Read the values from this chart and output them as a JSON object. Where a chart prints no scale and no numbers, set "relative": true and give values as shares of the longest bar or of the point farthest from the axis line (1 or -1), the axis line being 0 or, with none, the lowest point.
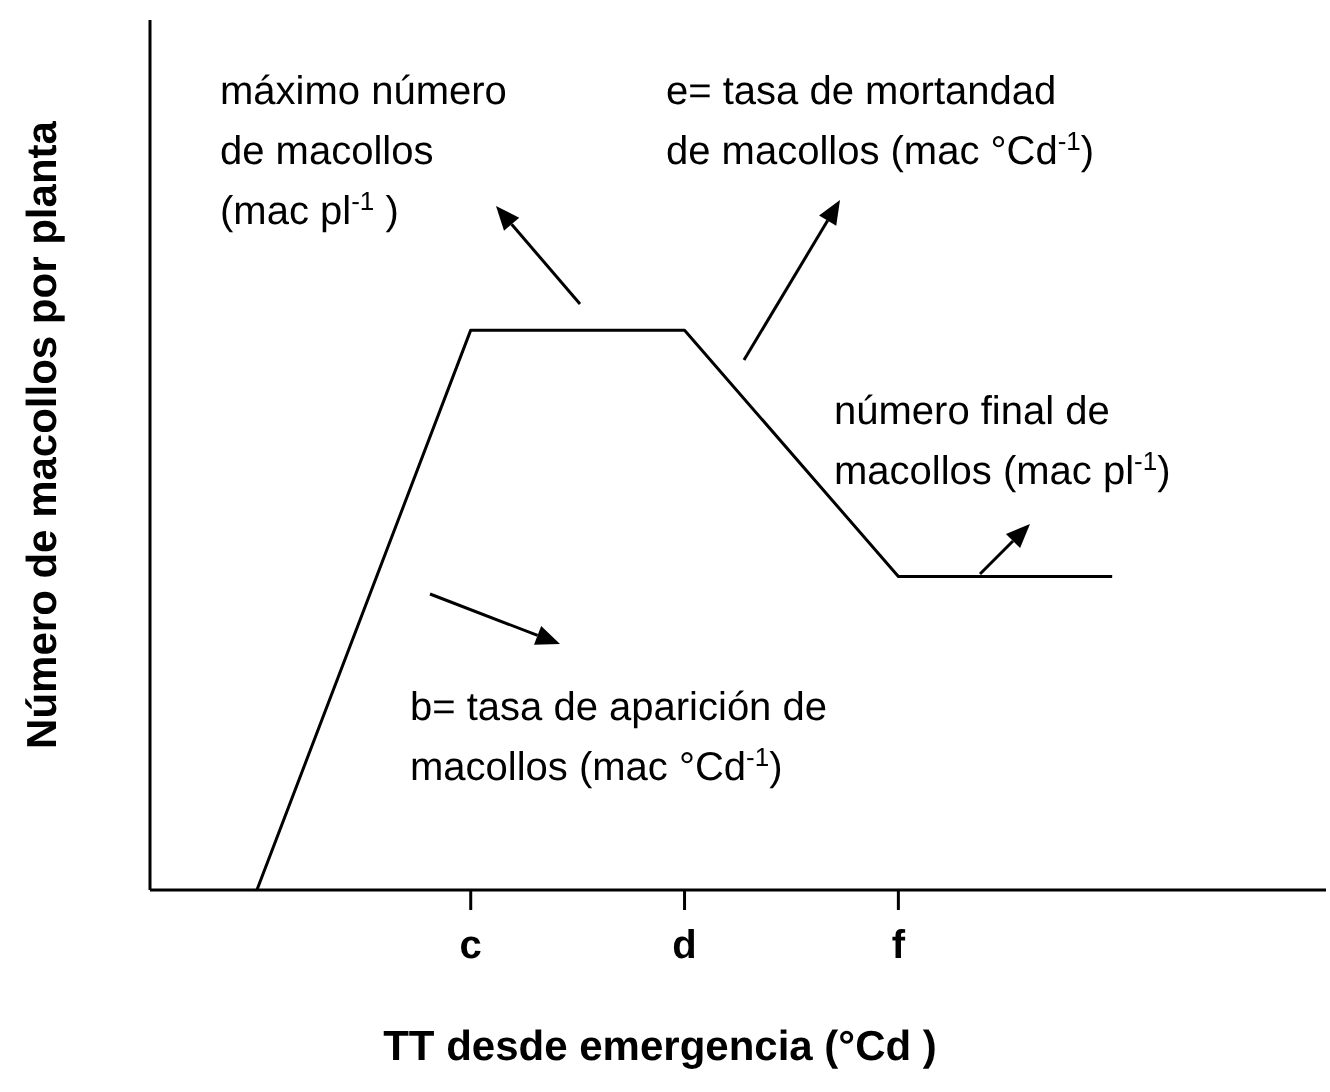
{
  "chart_data": {
    "type": "line",
    "xlabel": "TT desde emergencia (°Cd )",
    "ylabel": "Número de macollos por planta",
    "relative": true,
    "categories": [
      null,
      "c",
      "d",
      "f",
      null
    ],
    "values": [
      0,
      1,
      1,
      0.56,
      0.56
    ],
    "color": "#000000",
    "grid": false,
    "legend": false,
    "marker": "none",
    "line_style": "solid",
    "annotations": [
      "máximo número\nde macollos\n(mac pl$^{-1}$ )",
      "e= tasa de mortandad\nde macollos (mac °Cd$^{-1}$)",
      "número final de\nmacollos (mac pl$^{-1}$)",
      "b= tasa de aparición de\nmacollos (mac °Cd$^{-1}$)"
    ]
  }
}
